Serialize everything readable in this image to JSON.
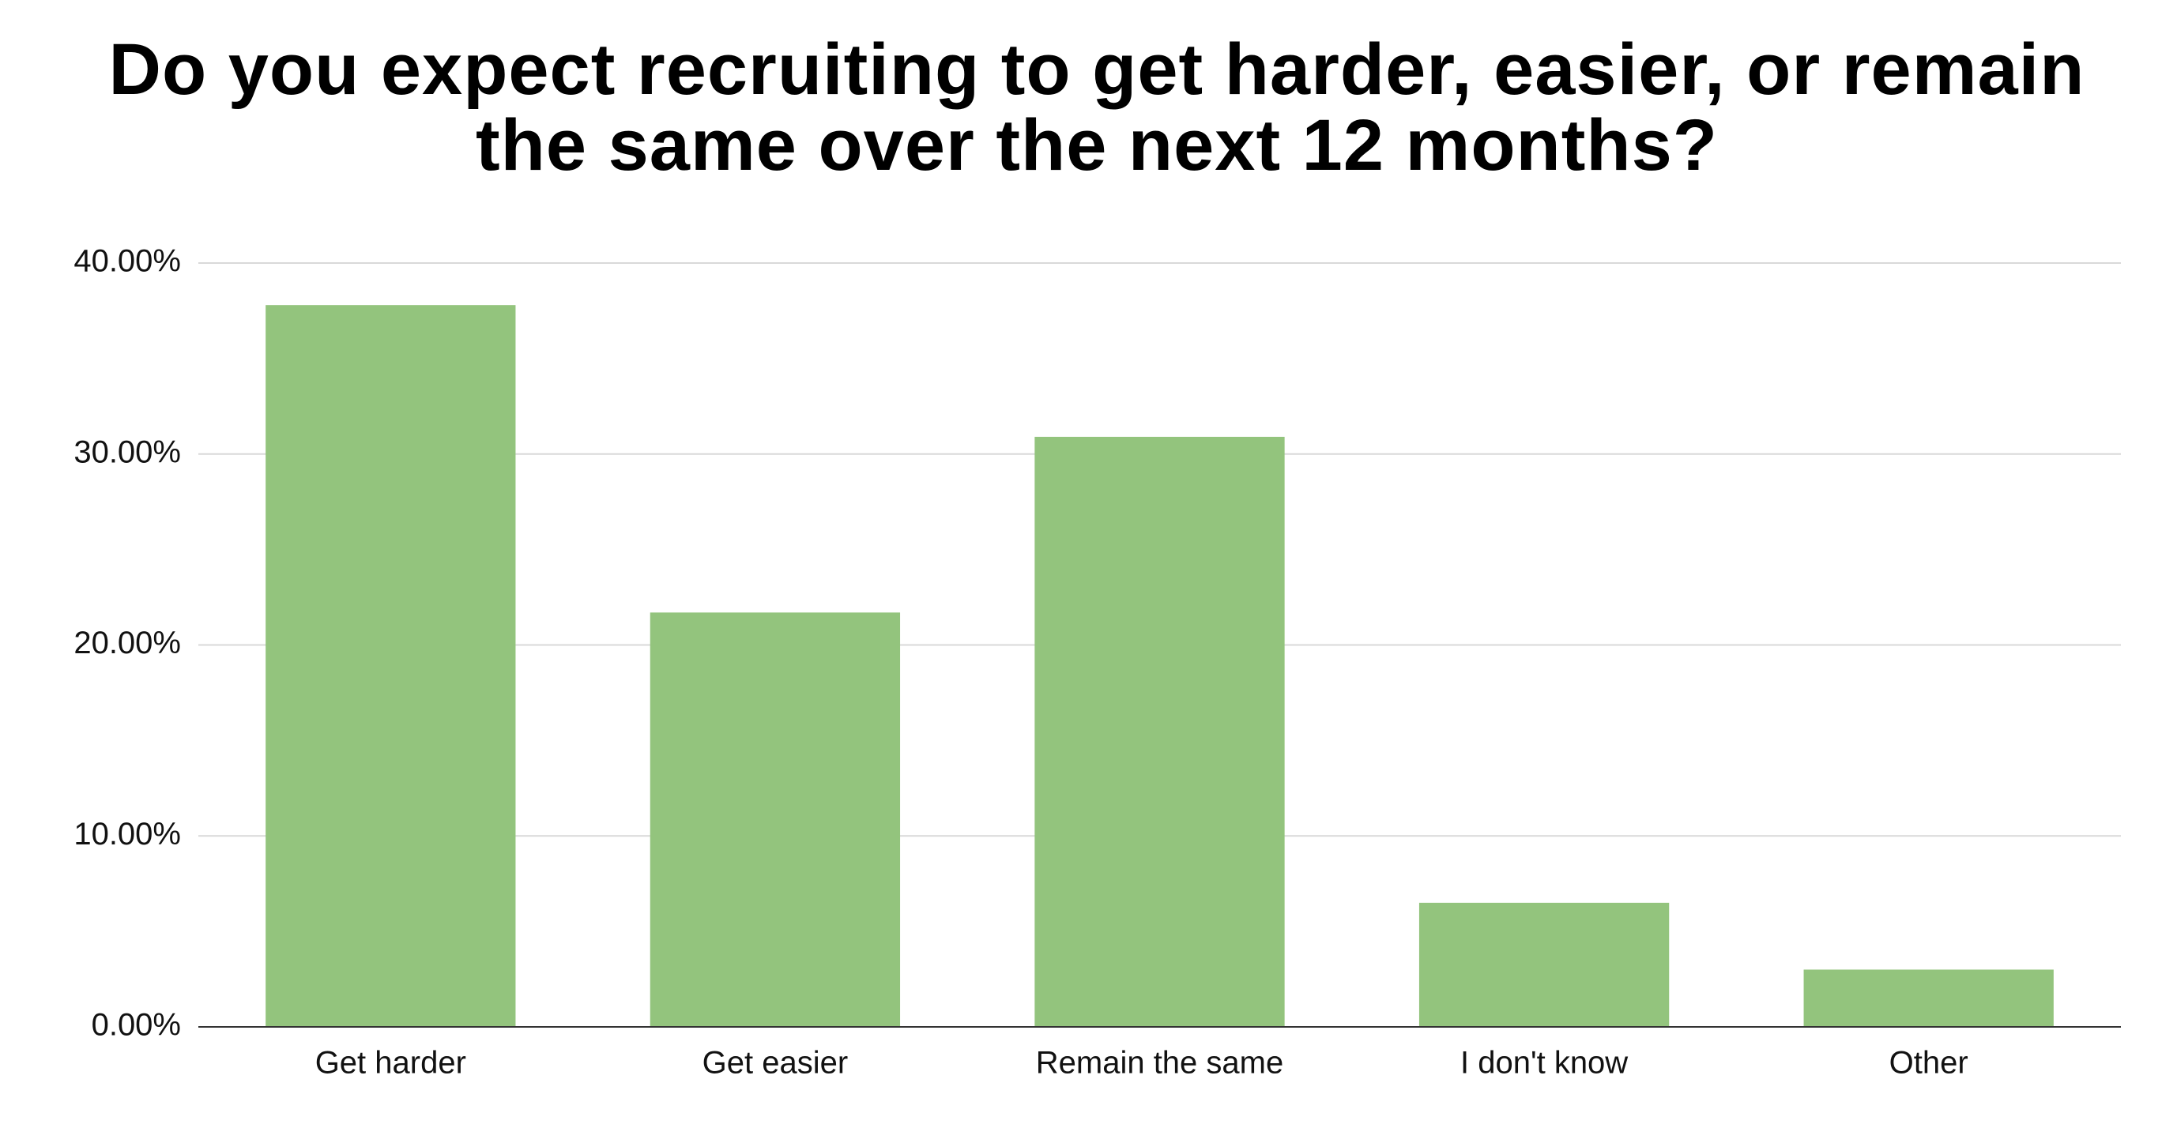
{
  "chart_data": {
    "type": "bar",
    "title": "Do you expect recruiting to get harder, easier, or remain the same over the next 12 months?",
    "categories": [
      "Get harder",
      "Get easier",
      "Remain the same",
      "I don't know",
      "Other"
    ],
    "values": [
      37.8,
      21.7,
      30.9,
      6.5,
      3.0
    ],
    "color": "#93c47d",
    "ylim": [
      0,
      40
    ],
    "yticks": [
      {
        "value": 0,
        "label": "0.00%"
      },
      {
        "value": 10,
        "label": "10.00%"
      },
      {
        "value": 20,
        "label": "20.00%"
      },
      {
        "value": 30,
        "label": "30.00%"
      },
      {
        "value": 40,
        "label": "40.00%"
      }
    ],
    "grid": true
  }
}
